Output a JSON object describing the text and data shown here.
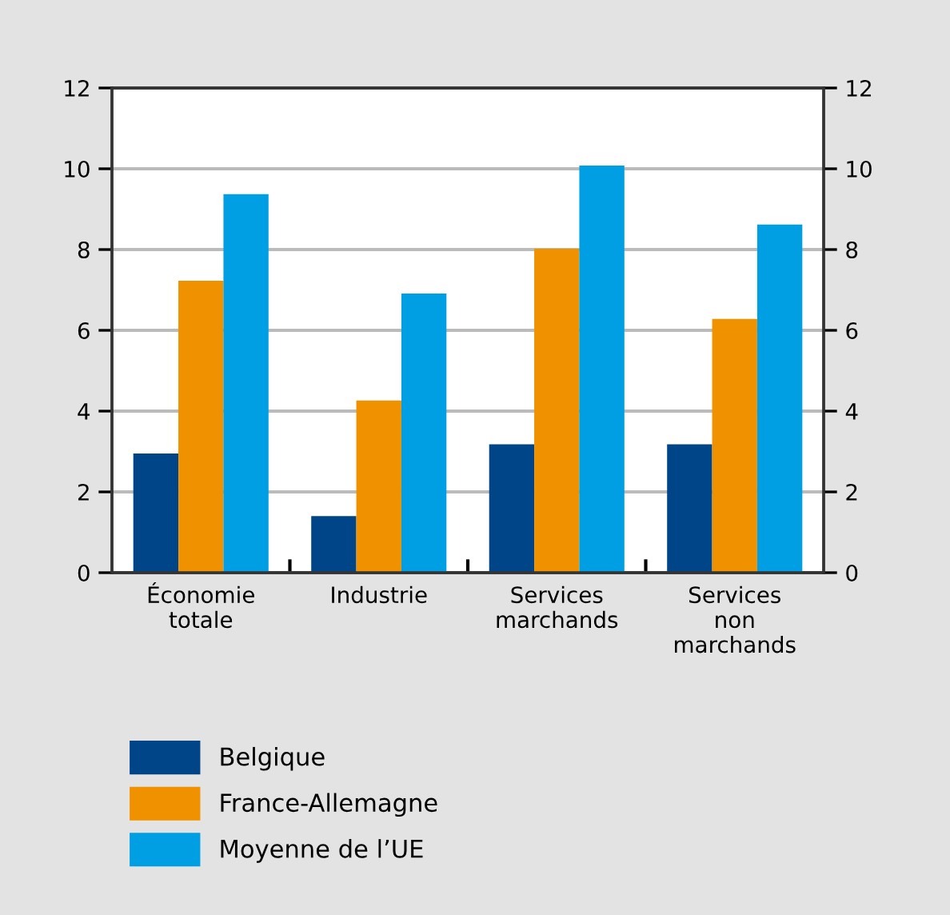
{
  "chart_data": {
    "type": "bar",
    "categories": [
      "Économie\ntotale",
      "Industrie",
      "Services\nmarchands",
      "Services\nnon\nmarchands"
    ],
    "series": [
      {
        "name": "Belgique",
        "color": "#004587",
        "values": [
          2.95,
          1.4,
          3.18,
          3.18
        ]
      },
      {
        "name": "France-Allemagne",
        "color": "#f09100",
        "values": [
          7.23,
          4.26,
          8.02,
          6.28
        ]
      },
      {
        "name": "Moyenne de l’UE",
        "color": "#009fe3",
        "values": [
          9.37,
          6.91,
          10.08,
          8.62
        ]
      }
    ],
    "ylim": [
      0,
      12
    ],
    "yticks": [
      0,
      2,
      4,
      6,
      8,
      10,
      12
    ],
    "y2lim": [
      0,
      12
    ],
    "y2ticks": [
      0,
      2,
      4,
      6,
      8,
      10,
      12
    ],
    "grid": "y",
    "legend": "bottom"
  }
}
